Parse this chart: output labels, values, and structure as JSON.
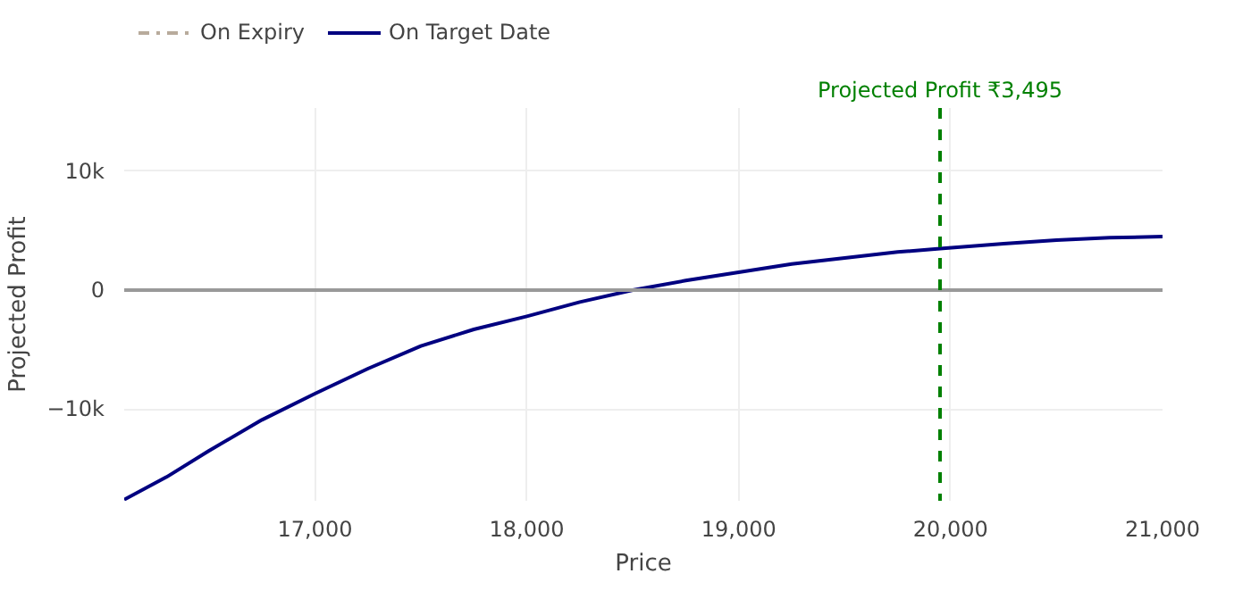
{
  "chart_data": {
    "type": "line",
    "xlabel": "Price",
    "ylabel": "Projected Profit",
    "x": [
      16100,
      16300,
      16500,
      16750,
      17000,
      17250,
      17500,
      17750,
      18000,
      18250,
      18500,
      18750,
      19000,
      19250,
      19500,
      19750,
      19950,
      20250,
      20500,
      20750,
      21000
    ],
    "series": [
      {
        "name": "On Expiry",
        "color": "#b8ab9c",
        "line_style": "dashed",
        "values": [
          null,
          null,
          null,
          null,
          null,
          null,
          null,
          null,
          null,
          null,
          null,
          null,
          null,
          null,
          null,
          null,
          null,
          null,
          null,
          null,
          null
        ]
      },
      {
        "name": "On Target Date",
        "color": "#000080",
        "line_style": "solid",
        "values": [
          -17600,
          -15700,
          -13500,
          -10900,
          -8700,
          -6600,
          -4700,
          -3300,
          -2200,
          -1000,
          0,
          800,
          1500,
          2200,
          2700,
          3200,
          3495,
          3900,
          4200,
          4400,
          4500
        ]
      }
    ],
    "xlim": [
      16100,
      21000
    ],
    "ylim": [
      -17700,
      15300
    ],
    "xticks": [
      {
        "value": 17000,
        "label": "17,000"
      },
      {
        "value": 18000,
        "label": "18,000"
      },
      {
        "value": 19000,
        "label": "19,000"
      },
      {
        "value": 20000,
        "label": "20,000"
      },
      {
        "value": 21000,
        "label": "21,000"
      }
    ],
    "yticks": [
      {
        "value": -10000,
        "label": "−10k"
      },
      0,
      {
        "value": 10000,
        "label": "10k"
      }
    ],
    "ref_lines": [
      {
        "axis": "y",
        "value": 0,
        "color": "#999999",
        "line_style": "solid"
      },
      {
        "axis": "x",
        "value": 19950,
        "label": "Projected Profit ₹3,495",
        "color": "#008000",
        "line_style": "dashed"
      }
    ],
    "grid": true,
    "legend": "top left"
  }
}
